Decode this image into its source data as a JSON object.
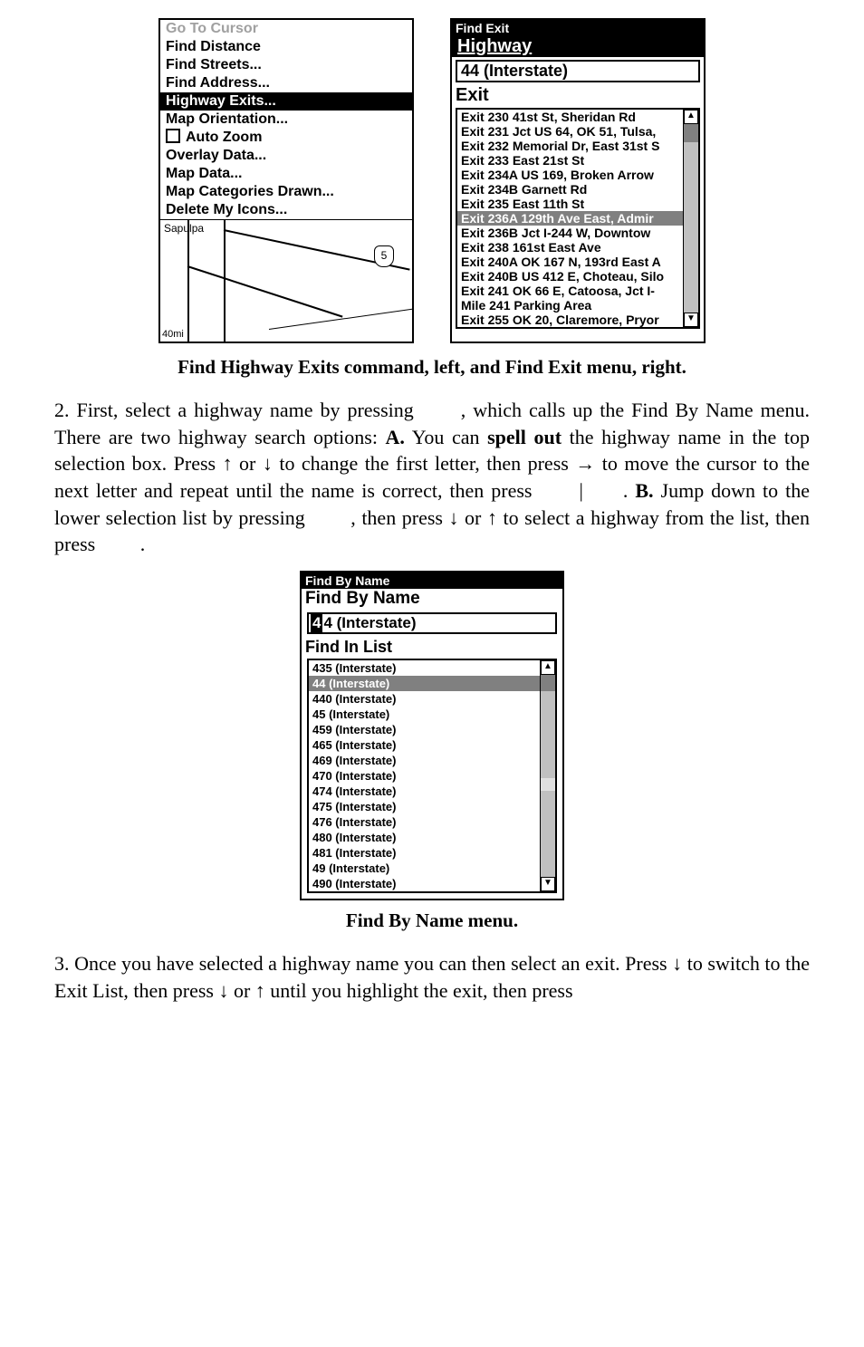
{
  "left_menu": {
    "items": [
      {
        "label": "Go To Cursor",
        "cls": "gray"
      },
      {
        "label": "Find Distance",
        "cls": ""
      },
      {
        "label": "Find Streets...",
        "cls": ""
      },
      {
        "label": "Find Address...",
        "cls": ""
      },
      {
        "label": "Highway Exits...",
        "cls": "selected"
      },
      {
        "label": "Map Orientation...",
        "cls": ""
      },
      {
        "label": "Auto Zoom",
        "cls": "checkbox"
      },
      {
        "label": "Overlay Data...",
        "cls": ""
      },
      {
        "label": "Map Data...",
        "cls": ""
      },
      {
        "label": "Map Categories Drawn...",
        "cls": ""
      },
      {
        "label": "Delete My Icons...",
        "cls": ""
      }
    ],
    "map": {
      "label_top": "Sapulpa",
      "label_bottom": "40mi",
      "shield": "5"
    }
  },
  "find_exit": {
    "title": "Find Exit",
    "section": "Highway",
    "highway_value": "44 (Interstate)",
    "exit_heading": "Exit",
    "exits": [
      {
        "t": "Exit 230 41st St, Sheridan Rd"
      },
      {
        "t": "Exit 231 Jct US 64, OK 51, Tulsa,"
      },
      {
        "t": "Exit 232 Memorial Dr, East 31st S"
      },
      {
        "t": "Exit 233 East 21st St"
      },
      {
        "t": "Exit 234A US 169, Broken Arrow"
      },
      {
        "t": "Exit 234B Garnett Rd"
      },
      {
        "t": "Exit 235 East 11th St"
      },
      {
        "t": "Exit 236A 129th Ave East, Admir",
        "hl": true
      },
      {
        "t": "Exit 236B Jct I-244 W, Downtow"
      },
      {
        "t": "Exit 238 161st East Ave"
      },
      {
        "t": "Exit 240A OK 167 N, 193rd East A"
      },
      {
        "t": "Exit 240B US 412 E, Choteau, Silo"
      },
      {
        "t": "Exit 241 OK 66 E, Catoosa, Jct I-"
      },
      {
        "t": "Mile 241 Parking Area"
      },
      {
        "t": "Exit 255 OK 20, Claremore, Pryor"
      }
    ]
  },
  "caption1": "Find Highway Exits command, left, and Find Exit menu, right.",
  "para1_a": "2. First, select a highway name by pressing ",
  "para1_ent1": "",
  "para1_b": ", which calls up the Find By Name menu. There are two highway search options: ",
  "para1_boldA": "A.",
  "para1_c": " You can ",
  "para1_spell": "spell out",
  "para1_d": " the highway name in the top selection box. Press ↑ or ↓ to change the first letter, then press → to move the cursor to the next letter and repeat until the name is correct, then press ",
  "para1_ent2": "",
  "para1_bar": "|",
  "para1_ent3": "",
  "para1_e": ". ",
  "para1_boldB": "B.",
  "para1_f": " Jump down to the lower selection list by pressing ",
  "para1_ent4": "",
  "para1_g": ", then press ↓ or ↑ to select a highway from the list, then press ",
  "para1_ent5": "",
  "para1_h": ".",
  "find_by_name": {
    "title": "Find By Name",
    "heading": "Find By Name",
    "input_cursor": "4",
    "input_rest": "4 (Interstate)",
    "list_heading": "Find In List",
    "items": [
      {
        "t": "435 (Interstate)"
      },
      {
        "t": "44 (Interstate)",
        "hl": true
      },
      {
        "t": "440 (Interstate)"
      },
      {
        "t": "45 (Interstate)"
      },
      {
        "t": "459 (Interstate)"
      },
      {
        "t": "465 (Interstate)"
      },
      {
        "t": "469 (Interstate)"
      },
      {
        "t": "470 (Interstate)"
      },
      {
        "t": "474 (Interstate)"
      },
      {
        "t": "475 (Interstate)"
      },
      {
        "t": "476 (Interstate)"
      },
      {
        "t": "480 (Interstate)"
      },
      {
        "t": "481 (Interstate)"
      },
      {
        "t": "49 (Interstate)"
      },
      {
        "t": "490 (Interstate)"
      }
    ]
  },
  "caption2": "Find By Name menu.",
  "para2": "3. Once you have selected a highway name you can then select an exit. Press ↓ to switch to the Exit List, then press ↓ or ↑ until you highlight the exit, then press "
}
